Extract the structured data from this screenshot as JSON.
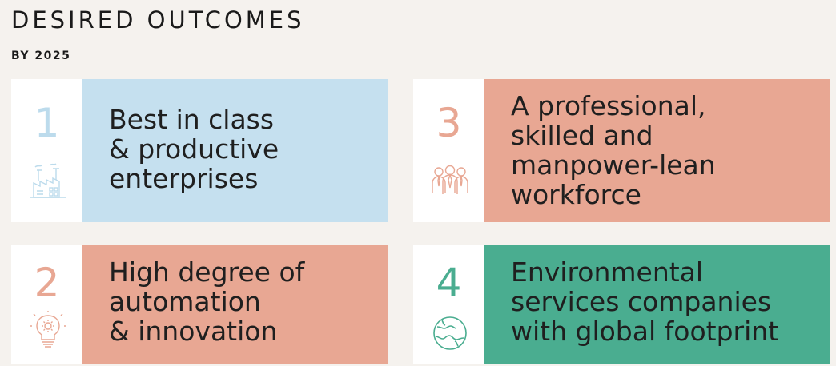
{
  "header": {
    "title": "DESIRED OUTCOMES",
    "subtitle": "BY 2025"
  },
  "outcomes": [
    {
      "number": "1",
      "text": "Best in class\n& productive\nenterprises",
      "icon": "factory-icon",
      "accent_color": "#c5e0ef",
      "number_color": "#bcdbec"
    },
    {
      "number": "2",
      "text": "High degree of\nautomation\n& innovation",
      "icon": "lightbulb-gear-icon",
      "accent_color": "#e8a793",
      "number_color": "#e8a793"
    },
    {
      "number": "3",
      "text": "A professional,\nskilled and\nmanpower-lean\nworkforce",
      "icon": "workforce-group-icon",
      "accent_color": "#e8a793",
      "number_color": "#e8a793"
    },
    {
      "number": "4",
      "text": "Environmental\nservices companies\nwith global footprint",
      "icon": "globe-icon",
      "accent_color": "#4aad90",
      "number_color": "#4aad90"
    }
  ]
}
